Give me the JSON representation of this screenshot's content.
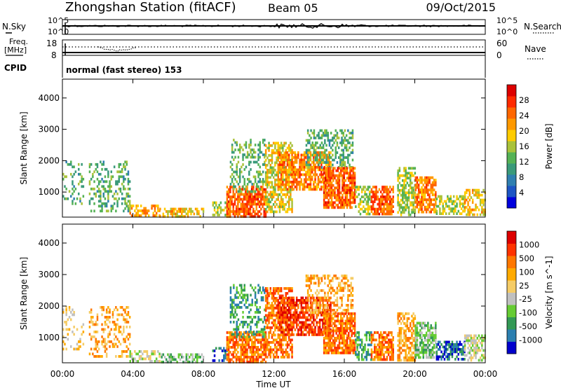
{
  "header": {
    "station": "Zhongshan Station (fitACF)",
    "beam": "Beam 05",
    "date": "09/Oct/2015"
  },
  "sky_panel": {
    "left_label": "N.Sky",
    "right_label": "N.Search",
    "left_ticks": [
      "10^5",
      "10^0"
    ],
    "right_ticks": [
      "10^5",
      "10^0"
    ]
  },
  "freq_panel": {
    "left_label_1": "Freq.",
    "left_label_2": "[MHz]",
    "right_label": "Nave",
    "left_ticks": [
      "18",
      "8"
    ],
    "right_ticks": [
      "60",
      "0"
    ]
  },
  "cpid": {
    "label": "CPID",
    "value": "normal (fast stereo) 153"
  },
  "colors": {
    "power": [
      "#0000dd",
      "#1d55c4",
      "#2f7fb0",
      "#3a9a7a",
      "#55b255",
      "#a9c23a",
      "#ffcc00",
      "#ff9900",
      "#ff6600",
      "#ff2a00",
      "#dd0000"
    ],
    "velocity": [
      "#dd0000",
      "#ff3300",
      "#ff7700",
      "#ffaa00",
      "#f5cc66",
      "#c0c0c0",
      "#66cc33",
      "#339955",
      "#2b7fb0",
      "#0000cc"
    ]
  },
  "chart_data": [
    {
      "type": "heatmap",
      "title": "Power",
      "ylabel": "Slant Range [km]",
      "xlabel": "Time UT",
      "x_ticks": [
        "00:00",
        "04:00",
        "08:00",
        "12:00",
        "16:00",
        "20:00",
        "00:00"
      ],
      "y_ticks": [
        1000,
        2000,
        3000,
        4000
      ],
      "ylim": [
        200,
        4600
      ],
      "xlim_hours": [
        0,
        24
      ],
      "colorbar": {
        "label": "Power [dB]",
        "ticks": [
          4,
          8,
          12,
          16,
          20,
          24,
          28
        ],
        "range": [
          0,
          32
        ]
      },
      "blobs": [
        {
          "t": [
            0.0,
            1.2
          ],
          "r": [
            600,
            2000
          ],
          "v": 12,
          "d": 0.22
        },
        {
          "t": [
            1.5,
            3.8
          ],
          "r": [
            400,
            2000
          ],
          "v": 12,
          "d": 0.3
        },
        {
          "t": [
            3.8,
            5.5
          ],
          "r": [
            250,
            600
          ],
          "v": 22,
          "d": 0.6
        },
        {
          "t": [
            5.5,
            8.0
          ],
          "r": [
            250,
            500
          ],
          "v": 20,
          "d": 0.5
        },
        {
          "t": [
            8.5,
            9.3
          ],
          "r": [
            250,
            700
          ],
          "v": 16,
          "d": 0.4
        },
        {
          "t": [
            9.3,
            11.5
          ],
          "r": [
            250,
            1200
          ],
          "v": 26,
          "d": 0.75
        },
        {
          "t": [
            9.5,
            11.5
          ],
          "r": [
            1000,
            2700
          ],
          "v": 12,
          "d": 0.35
        },
        {
          "t": [
            11.5,
            13.0
          ],
          "r": [
            400,
            2600
          ],
          "v": 18,
          "d": 0.6
        },
        {
          "t": [
            12.2,
            15.2
          ],
          "r": [
            1100,
            2300
          ],
          "v": 24,
          "d": 0.7
        },
        {
          "t": [
            13.8,
            16.5
          ],
          "r": [
            1800,
            3000
          ],
          "v": 12,
          "d": 0.45
        },
        {
          "t": [
            14.8,
            16.6
          ],
          "r": [
            500,
            1800
          ],
          "v": 26,
          "d": 0.8
        },
        {
          "t": [
            16.6,
            17.5
          ],
          "r": [
            300,
            1200
          ],
          "v": 16,
          "d": 0.5
        },
        {
          "t": [
            17.5,
            18.8
          ],
          "r": [
            300,
            1200
          ],
          "v": 26,
          "d": 0.7
        },
        {
          "t": [
            19.0,
            20.0
          ],
          "r": [
            300,
            1800
          ],
          "v": 16,
          "d": 0.6
        },
        {
          "t": [
            20.0,
            21.2
          ],
          "r": [
            350,
            1500
          ],
          "v": 24,
          "d": 0.7
        },
        {
          "t": [
            21.2,
            22.8
          ],
          "r": [
            300,
            900
          ],
          "v": 16,
          "d": 0.6
        },
        {
          "t": [
            22.8,
            24.0
          ],
          "r": [
            300,
            1100
          ],
          "v": 20,
          "d": 0.55
        }
      ]
    },
    {
      "type": "heatmap",
      "title": "Velocity",
      "ylabel": "Slant Range [km]",
      "xlabel": "Time UT",
      "x_ticks": [
        "00:00",
        "04:00",
        "08:00",
        "12:00",
        "16:00",
        "20:00",
        "00:00"
      ],
      "y_ticks": [
        1000,
        2000,
        3000,
        4000
      ],
      "ylim": [
        200,
        4600
      ],
      "xlim_hours": [
        0,
        24
      ],
      "colorbar": {
        "label": "Velocity [m s^-1]",
        "ticks": [
          "1000",
          "500",
          "100",
          "25",
          "-25",
          "-100",
          "-500",
          "-1000"
        ]
      },
      "blobs": [
        {
          "t": [
            0.0,
            1.2
          ],
          "r": [
            600,
            2000
          ],
          "v": 4,
          "d": 0.22
        },
        {
          "t": [
            1.5,
            3.8
          ],
          "r": [
            400,
            2000
          ],
          "v": 3,
          "d": 0.3
        },
        {
          "t": [
            3.8,
            5.5
          ],
          "r": [
            250,
            600
          ],
          "v": 5,
          "d": 0.55
        },
        {
          "t": [
            5.5,
            8.0
          ],
          "r": [
            250,
            500
          ],
          "v": 6,
          "d": 0.5
        },
        {
          "t": [
            8.5,
            9.3
          ],
          "r": [
            250,
            700
          ],
          "v": 8,
          "d": 0.4
        },
        {
          "t": [
            9.3,
            11.5
          ],
          "r": [
            250,
            1200
          ],
          "v": 2,
          "d": 0.75
        },
        {
          "t": [
            9.5,
            11.5
          ],
          "r": [
            1000,
            2700
          ],
          "v": 7,
          "d": 0.35
        },
        {
          "t": [
            11.5,
            13.0
          ],
          "r": [
            400,
            2600
          ],
          "v": 2,
          "d": 0.6
        },
        {
          "t": [
            12.2,
            15.2
          ],
          "r": [
            1100,
            2300
          ],
          "v": 1,
          "d": 0.7
        },
        {
          "t": [
            13.8,
            16.5
          ],
          "r": [
            1800,
            3000
          ],
          "v": 3,
          "d": 0.45
        },
        {
          "t": [
            14.8,
            16.6
          ],
          "r": [
            500,
            1800
          ],
          "v": 2,
          "d": 0.8
        },
        {
          "t": [
            16.6,
            17.5
          ],
          "r": [
            300,
            1200
          ],
          "v": 7,
          "d": 0.5
        },
        {
          "t": [
            17.5,
            18.8
          ],
          "r": [
            300,
            1200
          ],
          "v": 2,
          "d": 0.7
        },
        {
          "t": [
            19.0,
            20.0
          ],
          "r": [
            300,
            1800
          ],
          "v": 3,
          "d": 0.6
        },
        {
          "t": [
            20.0,
            21.2
          ],
          "r": [
            350,
            1500
          ],
          "v": 6,
          "d": 0.7
        },
        {
          "t": [
            21.2,
            22.8
          ],
          "r": [
            300,
            900
          ],
          "v": 8,
          "d": 0.6
        },
        {
          "t": [
            22.8,
            24.0
          ],
          "r": [
            300,
            1100
          ],
          "v": 5,
          "d": 0.55
        }
      ]
    }
  ]
}
